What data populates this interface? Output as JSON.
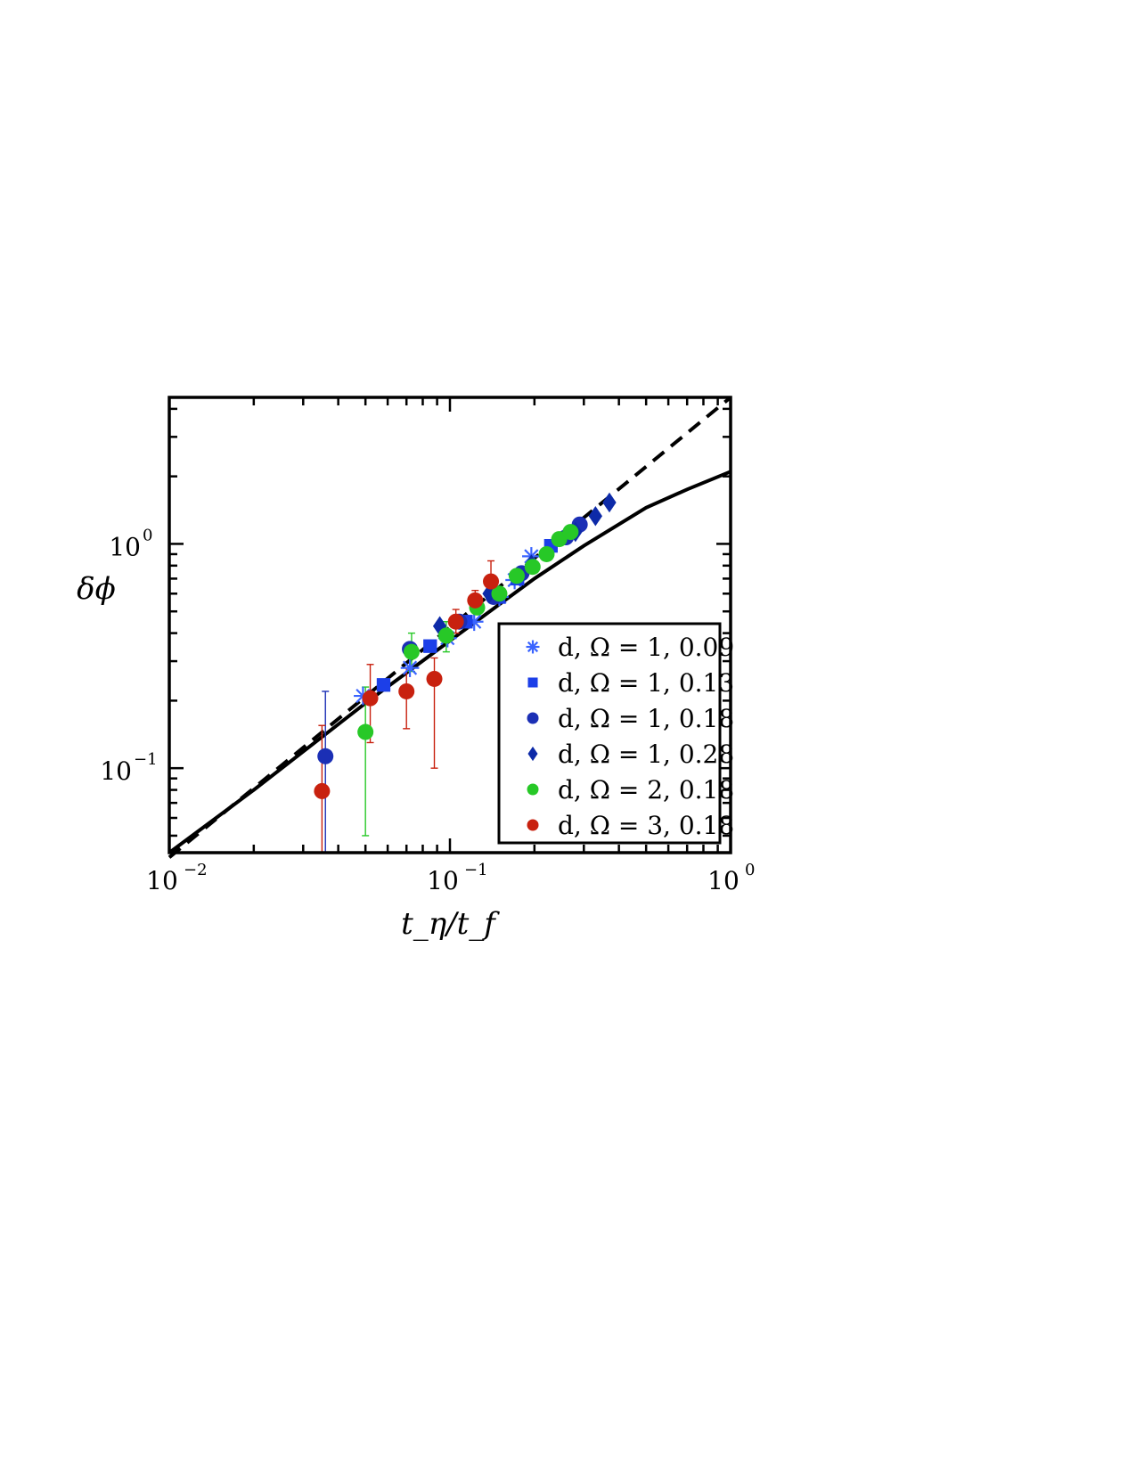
{
  "chart_data": {
    "type": "scatter",
    "title": "",
    "xlabel": "t_η/t_f",
    "ylabel": "δϕ",
    "xscale": "log",
    "yscale": "log",
    "xlim": [
      0.01,
      1
    ],
    "ylim": [
      0.042,
      4.5
    ],
    "x_ticks": [
      {
        "base": "10",
        "exp": "−2",
        "value": 0.01
      },
      {
        "base": "10",
        "exp": "−1",
        "value": 0.1
      },
      {
        "base": "10",
        "exp": "0",
        "value": 1
      }
    ],
    "y_ticks": [
      {
        "base": "10",
        "exp": "−1",
        "value": 0.1
      },
      {
        "base": "10",
        "exp": "0",
        "value": 1
      }
    ],
    "legend_position": "bottom-right",
    "series": [
      {
        "name": "d, Ω = 1, 0.09",
        "marker": "asterisk",
        "color": "#3a64ff",
        "points": [
          {
            "x": 0.049,
            "y": 0.21
          },
          {
            "x": 0.072,
            "y": 0.28
          },
          {
            "x": 0.098,
            "y": 0.38
          },
          {
            "x": 0.122,
            "y": 0.45
          },
          {
            "x": 0.15,
            "y": 0.58
          },
          {
            "x": 0.17,
            "y": 0.69
          },
          {
            "x": 0.195,
            "y": 0.88
          }
        ]
      },
      {
        "name": "d, Ω = 1, 0.13",
        "marker": "square",
        "color": "#1c3fe8",
        "points": [
          {
            "x": 0.058,
            "y": 0.235
          },
          {
            "x": 0.085,
            "y": 0.35
          },
          {
            "x": 0.114,
            "y": 0.45
          },
          {
            "x": 0.149,
            "y": 0.58
          },
          {
            "x": 0.174,
            "y": 0.7
          },
          {
            "x": 0.229,
            "y": 0.98
          }
        ]
      },
      {
        "name": "d, Ω = 1, 0.18",
        "marker": "circle",
        "color": "#1b2fb5",
        "points": [
          {
            "x": 0.036,
            "y": 0.113,
            "lo": 0.042,
            "hi": 0.22
          },
          {
            "x": 0.072,
            "y": 0.34
          },
          {
            "x": 0.108,
            "y": 0.45
          },
          {
            "x": 0.143,
            "y": 0.58
          },
          {
            "x": 0.18,
            "y": 0.74
          },
          {
            "x": 0.259,
            "y": 1.07
          },
          {
            "x": 0.29,
            "y": 1.22
          }
        ]
      },
      {
        "name": "d, Ω = 1, 0.28",
        "marker": "diamond",
        "color": "#0d2aa8",
        "points": [
          {
            "x": 0.092,
            "y": 0.43
          },
          {
            "x": 0.138,
            "y": 0.6
          },
          {
            "x": 0.195,
            "y": 0.81
          },
          {
            "x": 0.28,
            "y": 1.13
          },
          {
            "x": 0.33,
            "y": 1.33
          },
          {
            "x": 0.37,
            "y": 1.53
          }
        ]
      },
      {
        "name": "d, Ω = 2, 0.18",
        "marker": "circle",
        "color": "#27c827",
        "points": [
          {
            "x": 0.05,
            "y": 0.145,
            "lo": 0.05,
            "hi": 0.23
          },
          {
            "x": 0.073,
            "y": 0.33,
            "lo": 0.27,
            "hi": 0.4
          },
          {
            "x": 0.097,
            "y": 0.39,
            "lo": 0.33,
            "hi": 0.45
          },
          {
            "x": 0.125,
            "y": 0.52
          },
          {
            "x": 0.15,
            "y": 0.6
          },
          {
            "x": 0.173,
            "y": 0.72
          },
          {
            "x": 0.197,
            "y": 0.79
          },
          {
            "x": 0.221,
            "y": 0.9
          },
          {
            "x": 0.245,
            "y": 1.05
          },
          {
            "x": 0.269,
            "y": 1.13
          }
        ]
      },
      {
        "name": "d, Ω = 3, 0.18",
        "marker": "circle",
        "color": "#c8210f",
        "points": [
          {
            "x": 0.035,
            "y": 0.079,
            "lo": 0.042,
            "hi": 0.155
          },
          {
            "x": 0.052,
            "y": 0.205,
            "lo": 0.13,
            "hi": 0.29
          },
          {
            "x": 0.07,
            "y": 0.22,
            "lo": 0.15,
            "hi": 0.28
          },
          {
            "x": 0.088,
            "y": 0.25,
            "lo": 0.1,
            "hi": 0.31
          },
          {
            "x": 0.105,
            "y": 0.45,
            "lo": 0.4,
            "hi": 0.51
          },
          {
            "x": 0.123,
            "y": 0.56,
            "lo": 0.52,
            "hi": 0.62
          },
          {
            "x": 0.14,
            "y": 0.68,
            "lo": 0.6,
            "hi": 0.84
          }
        ]
      }
    ],
    "curves": [
      {
        "style": "solid",
        "color": "#000000",
        "points": [
          [
            0.01,
            0.042
          ],
          [
            0.02,
            0.08
          ],
          [
            0.05,
            0.195
          ],
          [
            0.1,
            0.37
          ],
          [
            0.2,
            0.7
          ],
          [
            0.3,
            0.98
          ],
          [
            0.5,
            1.45
          ],
          [
            0.7,
            1.75
          ],
          [
            1.0,
            2.1
          ]
        ]
      },
      {
        "style": "dashed",
        "color": "#000000",
        "points": [
          [
            0.01,
            0.04
          ],
          [
            1.0,
            4.5
          ]
        ]
      }
    ]
  }
}
